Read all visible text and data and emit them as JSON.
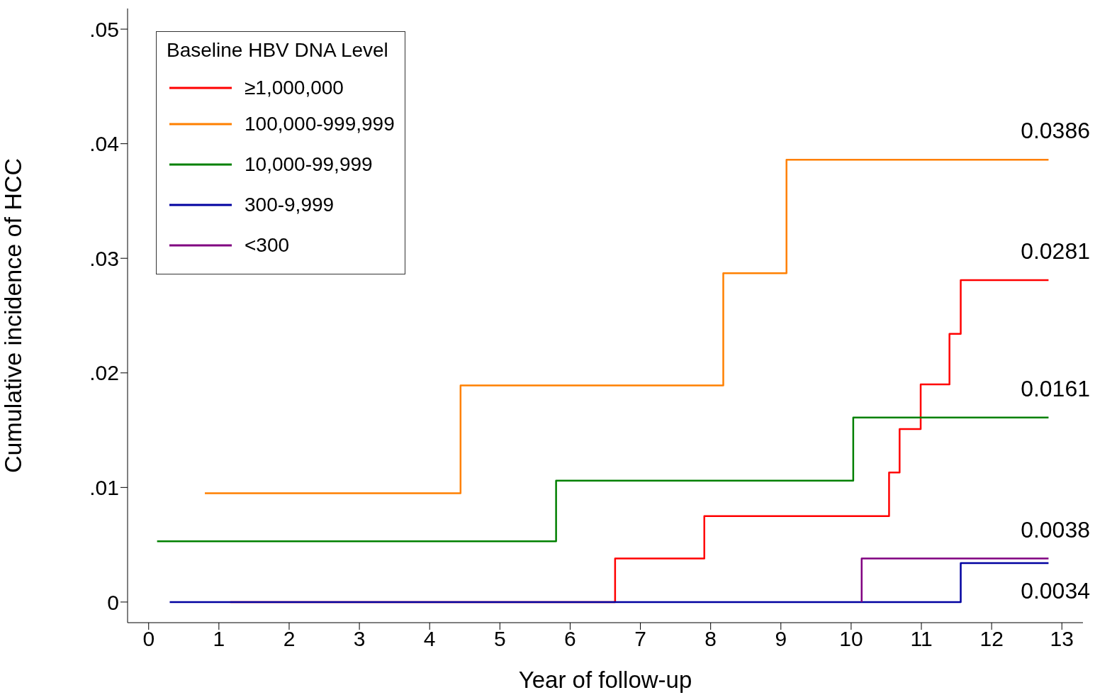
{
  "chart_data": {
    "type": "step",
    "xlabel": "Year of follow-up",
    "ylabel": "Cumulative incidence of HCC",
    "legend_title": "Baseline HBV DNA Level",
    "legend": "top left",
    "grid": false,
    "marker": "none",
    "line_style": "solid",
    "xlim": [
      -0.3,
      13.3
    ],
    "xticks": [
      0,
      1,
      2,
      3,
      4,
      5,
      6,
      7,
      8,
      9,
      10,
      11,
      12,
      13
    ],
    "ylim": [
      -0.0018,
      0.0518
    ],
    "yticks": [
      {
        "value": 0,
        "label": "0"
      },
      {
        "value": 0.01,
        "label": ".01"
      },
      {
        "value": 0.02,
        "label": ".02"
      },
      {
        "value": 0.03,
        "label": ".03"
      },
      {
        "value": 0.04,
        "label": ".04"
      },
      {
        "value": 0.05,
        "label": ".05"
      }
    ],
    "series": [
      {
        "name": "≥1,000,000",
        "color": "#ff0000",
        "x": [
          1.16,
          6.64,
          7.91,
          10.54,
          10.69,
          10.99,
          11.4,
          11.56,
          12.81
        ],
        "values": [
          0,
          0.0038,
          0.0075,
          0.0113,
          0.0151,
          0.019,
          0.0234,
          0.0281,
          0.0281
        ]
      },
      {
        "name": "100,000-999,999",
        "color": "#ff8000",
        "x": [
          0.8,
          4.44,
          8.18,
          9.08,
          12.81
        ],
        "values": [
          0.0095,
          0.0189,
          0.0287,
          0.0386,
          0.0386
        ]
      },
      {
        "name": "10,000-99,999",
        "color": "#008000",
        "x": [
          0.12,
          5.8,
          10.03,
          12.81
        ],
        "values": [
          0.0053,
          0.0106,
          0.0161,
          0.0161
        ]
      },
      {
        "name": "300-9,999",
        "color": "#0000a0",
        "x": [
          0.3,
          11.56,
          12.81
        ],
        "values": [
          0,
          0.0034,
          0.0034
        ]
      },
      {
        "name": "<300",
        "color": "#800080",
        "x": [
          10.15,
          10.15,
          12.81
        ],
        "values": [
          0,
          0.0038,
          0.0038
        ]
      }
    ],
    "annotations": [
      "0.0386",
      "0.0281",
      "0.0161",
      "0.0038",
      "0.0034"
    ]
  }
}
